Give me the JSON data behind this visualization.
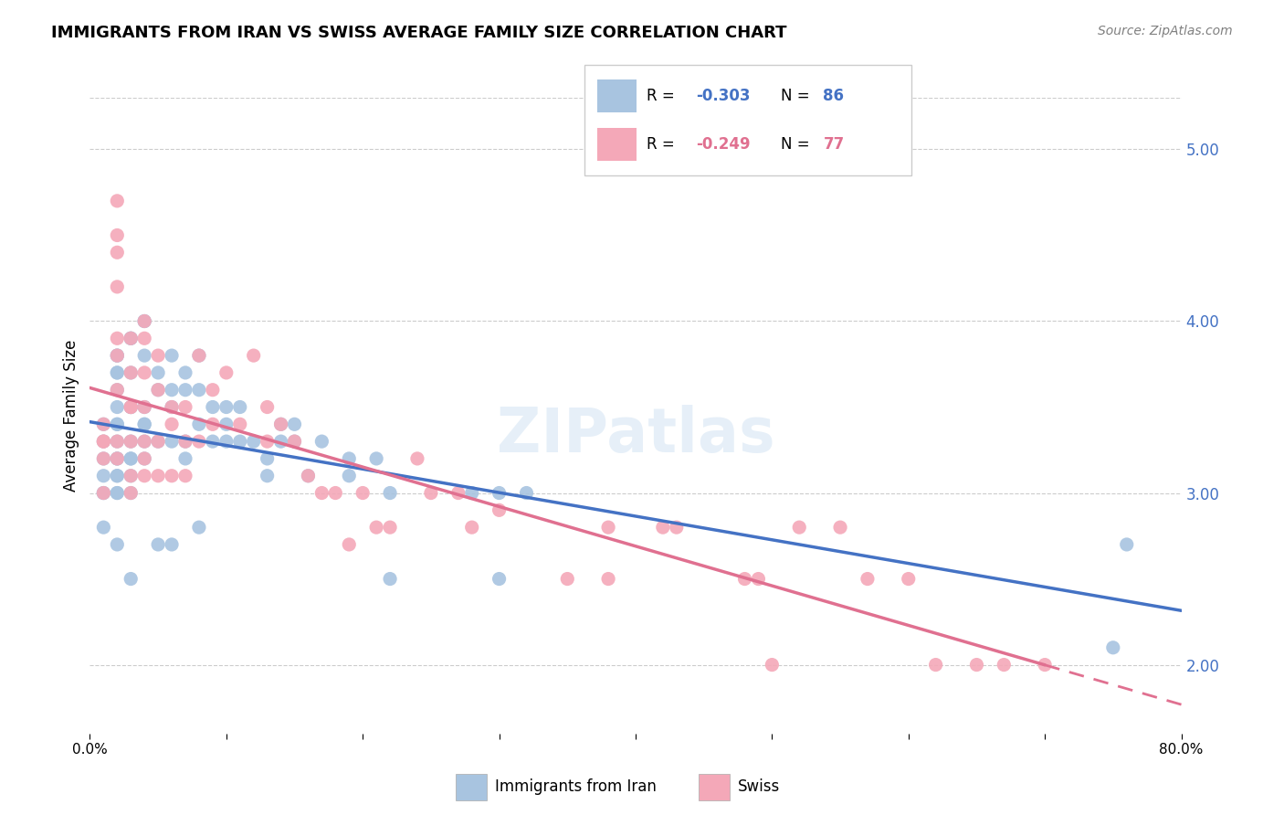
{
  "title": "IMMIGRANTS FROM IRAN VS SWISS AVERAGE FAMILY SIZE CORRELATION CHART",
  "source": "Source: ZipAtlas.com",
  "ylabel": "Average Family Size",
  "yticks": [
    2.0,
    3.0,
    4.0,
    5.0
  ],
  "legend_labels": [
    "Immigrants from Iran",
    "Swiss"
  ],
  "legend_r_iran": "R = -0.303",
  "legend_r_swiss": "R = -0.249",
  "legend_n_iran": "N = 86",
  "legend_n_swiss": "N = 77",
  "color_iran": "#a8c4e0",
  "color_swiss": "#f4a8b8",
  "color_iran_line": "#4472c4",
  "color_swiss_line": "#e07090",
  "xlim": [
    0.0,
    0.8
  ],
  "ylim": [
    1.6,
    5.3
  ],
  "background_color": "#ffffff",
  "title_fontsize": 13,
  "iran_x": [
    0.01,
    0.01,
    0.01,
    0.01,
    0.01,
    0.01,
    0.01,
    0.02,
    0.02,
    0.02,
    0.02,
    0.02,
    0.02,
    0.02,
    0.02,
    0.02,
    0.02,
    0.02,
    0.02,
    0.02,
    0.02,
    0.02,
    0.02,
    0.03,
    0.03,
    0.03,
    0.03,
    0.03,
    0.03,
    0.03,
    0.03,
    0.03,
    0.03,
    0.03,
    0.04,
    0.04,
    0.04,
    0.04,
    0.04,
    0.04,
    0.04,
    0.04,
    0.05,
    0.05,
    0.05,
    0.05,
    0.06,
    0.06,
    0.06,
    0.06,
    0.06,
    0.07,
    0.07,
    0.07,
    0.07,
    0.08,
    0.08,
    0.08,
    0.08,
    0.09,
    0.09,
    0.1,
    0.1,
    0.1,
    0.11,
    0.11,
    0.12,
    0.13,
    0.13,
    0.14,
    0.14,
    0.15,
    0.15,
    0.16,
    0.17,
    0.19,
    0.19,
    0.21,
    0.22,
    0.22,
    0.28,
    0.3,
    0.3,
    0.32,
    0.75,
    0.76
  ],
  "iran_y": [
    3.4,
    3.3,
    3.2,
    3.1,
    3.0,
    3.0,
    2.8,
    3.8,
    3.8,
    3.7,
    3.7,
    3.6,
    3.5,
    3.4,
    3.4,
    3.3,
    3.2,
    3.2,
    3.1,
    3.1,
    3.0,
    3.0,
    2.7,
    3.9,
    3.9,
    3.7,
    3.5,
    3.5,
    3.3,
    3.2,
    3.2,
    3.1,
    3.0,
    2.5,
    4.0,
    4.0,
    3.8,
    3.5,
    3.4,
    3.4,
    3.3,
    3.2,
    3.7,
    3.6,
    3.3,
    2.7,
    3.8,
    3.6,
    3.5,
    3.3,
    2.7,
    3.7,
    3.6,
    3.3,
    3.2,
    3.8,
    3.6,
    3.4,
    2.8,
    3.5,
    3.3,
    3.5,
    3.4,
    3.3,
    3.5,
    3.3,
    3.3,
    3.2,
    3.1,
    3.4,
    3.3,
    3.4,
    3.3,
    3.1,
    3.3,
    3.2,
    3.1,
    3.2,
    3.0,
    2.5,
    3.0,
    3.0,
    2.5,
    3.0,
    2.1,
    2.7
  ],
  "swiss_x": [
    0.01,
    0.01,
    0.01,
    0.01,
    0.01,
    0.02,
    0.02,
    0.02,
    0.02,
    0.02,
    0.02,
    0.02,
    0.02,
    0.02,
    0.03,
    0.03,
    0.03,
    0.03,
    0.03,
    0.03,
    0.03,
    0.04,
    0.04,
    0.04,
    0.04,
    0.04,
    0.04,
    0.04,
    0.05,
    0.05,
    0.05,
    0.05,
    0.06,
    0.06,
    0.06,
    0.07,
    0.07,
    0.07,
    0.08,
    0.08,
    0.09,
    0.09,
    0.1,
    0.11,
    0.12,
    0.13,
    0.13,
    0.14,
    0.15,
    0.16,
    0.17,
    0.18,
    0.19,
    0.2,
    0.21,
    0.22,
    0.24,
    0.25,
    0.27,
    0.28,
    0.3,
    0.35,
    0.38,
    0.38,
    0.42,
    0.43,
    0.48,
    0.49,
    0.5,
    0.52,
    0.55,
    0.57,
    0.6,
    0.62,
    0.65,
    0.67,
    0.7
  ],
  "swiss_y": [
    3.4,
    3.3,
    3.3,
    3.2,
    3.0,
    4.7,
    4.5,
    4.4,
    4.2,
    3.9,
    3.8,
    3.6,
    3.3,
    3.2,
    3.9,
    3.7,
    3.5,
    3.5,
    3.3,
    3.1,
    3.0,
    4.0,
    3.9,
    3.7,
    3.5,
    3.3,
    3.2,
    3.1,
    3.8,
    3.6,
    3.3,
    3.1,
    3.5,
    3.4,
    3.1,
    3.5,
    3.3,
    3.1,
    3.8,
    3.3,
    3.6,
    3.4,
    3.7,
    3.4,
    3.8,
    3.5,
    3.3,
    3.4,
    3.3,
    3.1,
    3.0,
    3.0,
    2.7,
    3.0,
    2.8,
    2.8,
    3.2,
    3.0,
    3.0,
    2.8,
    2.9,
    2.5,
    2.8,
    2.5,
    2.8,
    2.8,
    2.5,
    2.5,
    2.0,
    2.8,
    2.8,
    2.5,
    2.5,
    2.0,
    2.0,
    2.0,
    2.0
  ]
}
